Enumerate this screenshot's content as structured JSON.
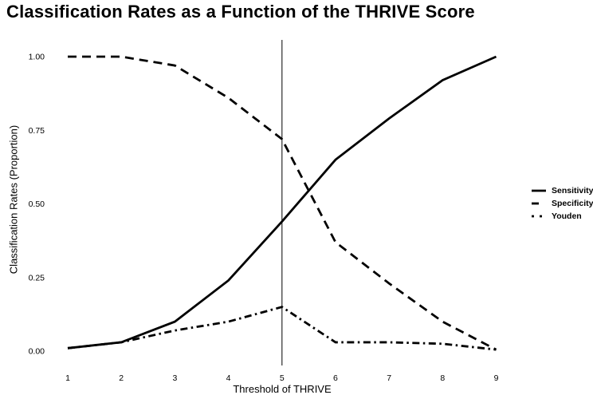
{
  "chart_data": {
    "type": "line",
    "title": "Classification Rates as a Function of the THRIVE Score",
    "xlabel": "Threshold of THRIVE",
    "ylabel": "Classification Rates (Proportion)",
    "x": [
      1,
      2,
      3,
      4,
      5,
      6,
      7,
      8,
      9
    ],
    "series": [
      {
        "name": "Sensitivity",
        "style": "solid",
        "values": [
          0.01,
          0.03,
          0.1,
          0.24,
          0.44,
          0.65,
          0.79,
          0.92,
          1.0
        ]
      },
      {
        "name": "Specificity",
        "style": "dashed",
        "values": [
          1.0,
          1.0,
          0.97,
          0.86,
          0.72,
          0.37,
          0.23,
          0.1,
          0.005
        ]
      },
      {
        "name": "Youden",
        "style": "dashdot",
        "values": [
          0.01,
          0.03,
          0.07,
          0.1,
          0.15,
          0.03,
          0.03,
          0.025,
          0.005
        ]
      }
    ],
    "reference_line": {
      "axis": "x",
      "value": 5
    },
    "xlim": [
      1,
      9
    ],
    "ylim": [
      0,
      1
    ],
    "xticks": [
      "1",
      "2",
      "3",
      "4",
      "5",
      "6",
      "7",
      "8",
      "9"
    ],
    "yticks": [
      "0.00",
      "0.25",
      "0.50",
      "0.75",
      "1.00"
    ],
    "grid": false,
    "legend_position": "right",
    "line_color": "#000000",
    "reference_line_color": "#4a4a4a",
    "background_color": "#ffffff"
  }
}
